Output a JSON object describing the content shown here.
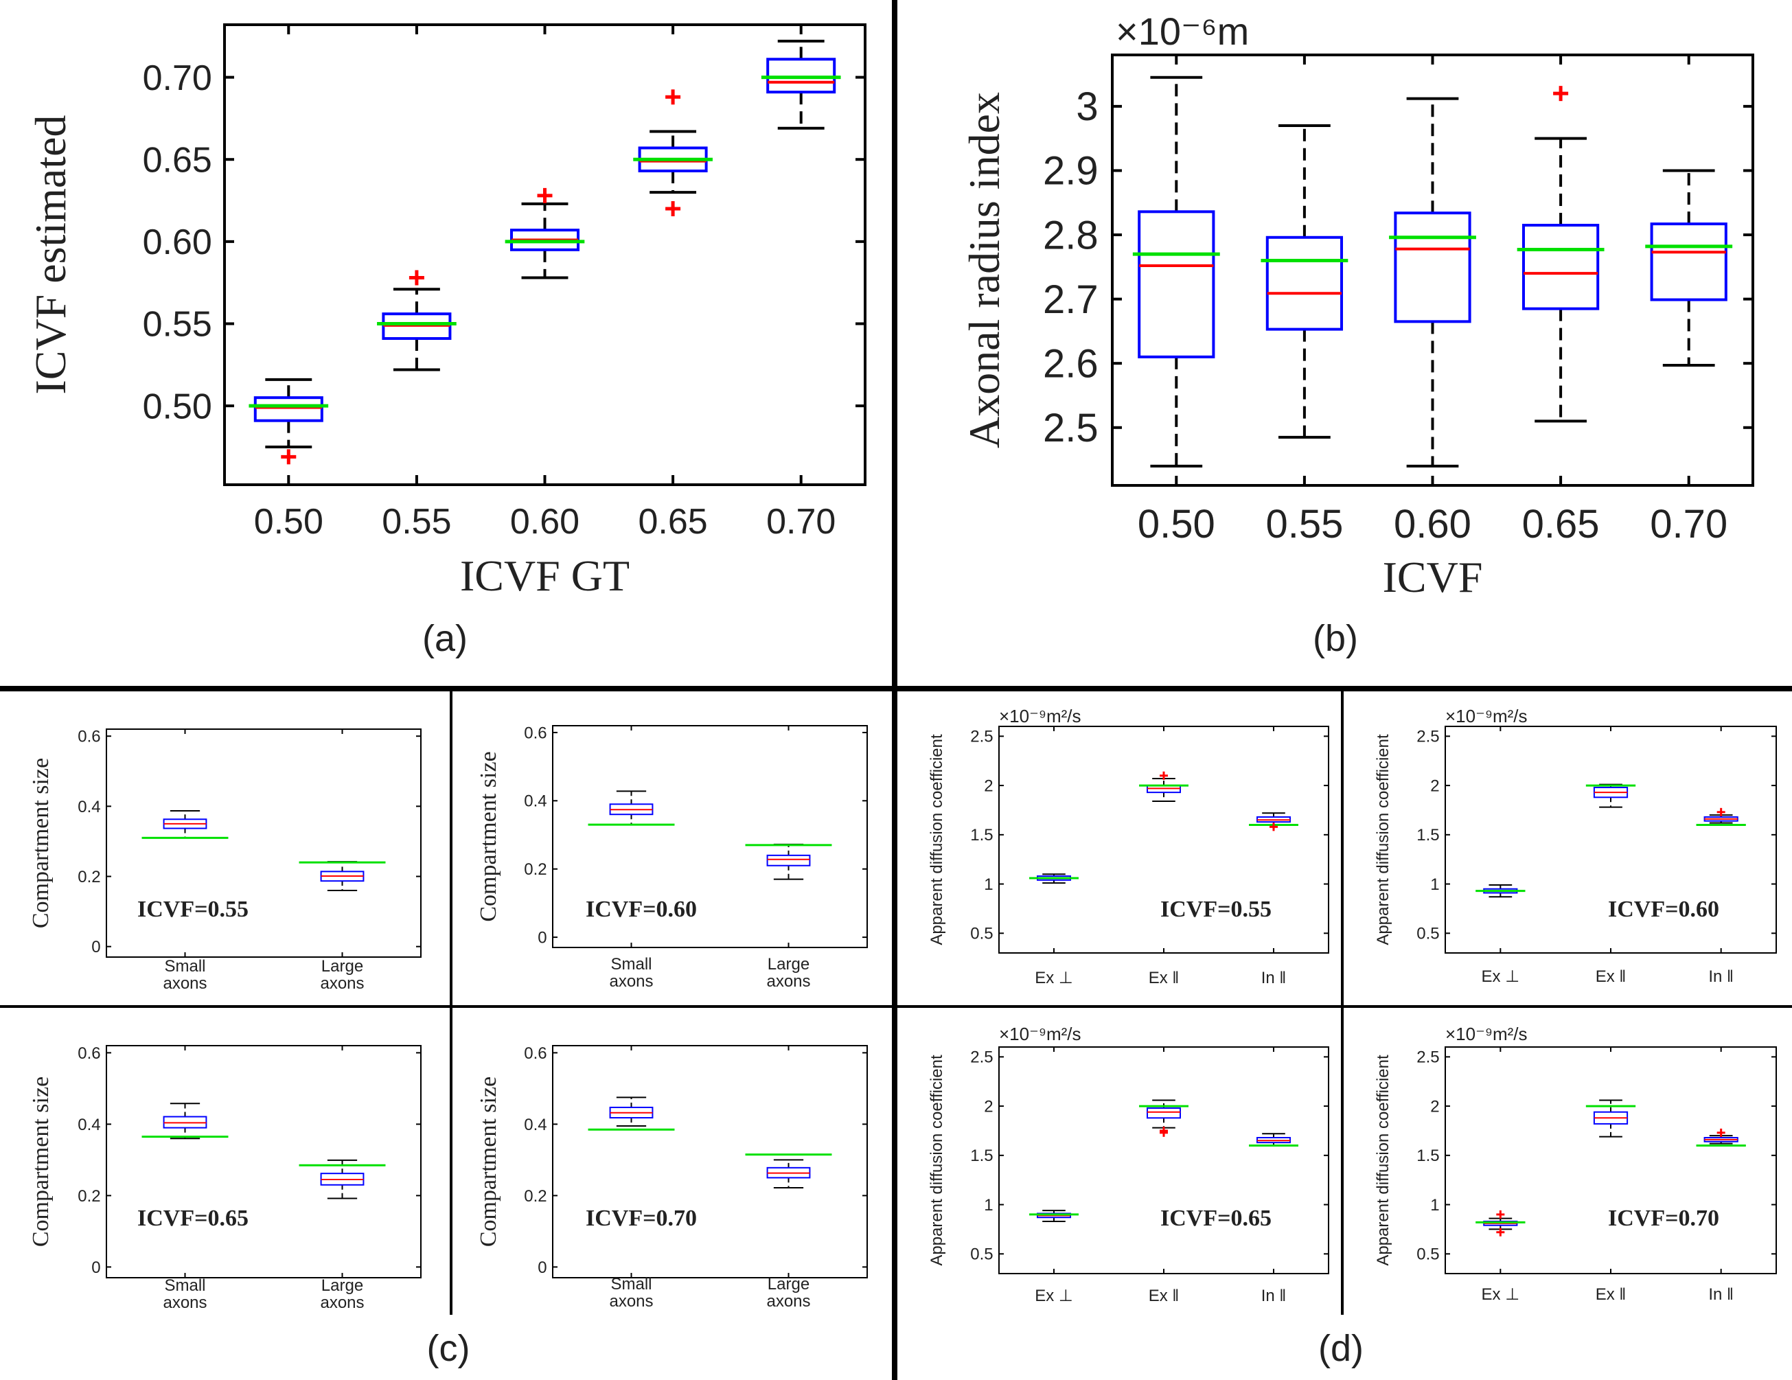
{
  "panel_labels": {
    "a": "(a)",
    "b": "(b)",
    "c": "(c)",
    "d": "(d)"
  },
  "colors": {
    "box": "#0000ff",
    "median": "#ff0000",
    "ground_truth": "#00e000",
    "outlier": "#ff0000",
    "whisker": "#000000",
    "frame": "#000000"
  },
  "chart_data": [
    {
      "id": "a",
      "type": "boxplot",
      "xlabel": "ICVF GT",
      "ylabel": "ICVF estimated",
      "multiplier": "",
      "categories": [
        "0.50",
        "0.55",
        "0.60",
        "0.65",
        "0.70"
      ],
      "ylim": [
        0.452,
        0.732
      ],
      "yticks": [
        0.5,
        0.55,
        0.6,
        0.65,
        0.7
      ],
      "ytick_labels": [
        "0.50",
        "0.55",
        "0.60",
        "0.65",
        "0.70"
      ],
      "boxes": [
        {
          "q1": 0.491,
          "median": 0.499,
          "q3": 0.505,
          "wlo": 0.475,
          "whi": 0.516,
          "gt": 0.5,
          "outliers": [
            0.469
          ]
        },
        {
          "q1": 0.541,
          "median": 0.549,
          "q3": 0.556,
          "wlo": 0.522,
          "whi": 0.571,
          "gt": 0.55,
          "outliers": [
            0.578
          ]
        },
        {
          "q1": 0.595,
          "median": 0.601,
          "q3": 0.607,
          "wlo": 0.578,
          "whi": 0.623,
          "gt": 0.6,
          "outliers": [
            0.628
          ]
        },
        {
          "q1": 0.643,
          "median": 0.649,
          "q3": 0.657,
          "wlo": 0.63,
          "whi": 0.667,
          "gt": 0.65,
          "outliers": [
            0.688,
            0.62
          ]
        },
        {
          "q1": 0.691,
          "median": 0.697,
          "q3": 0.711,
          "wlo": 0.669,
          "whi": 0.722,
          "gt": 0.7,
          "outliers": []
        }
      ]
    },
    {
      "id": "b",
      "type": "boxplot",
      "xlabel": "ICVF",
      "ylabel": "Axonal radius index",
      "multiplier": "×10⁻⁶m",
      "categories": [
        "0.50",
        "0.55",
        "0.60",
        "0.65",
        "0.70"
      ],
      "ylim": [
        2.41,
        3.08
      ],
      "yticks": [
        2.5,
        2.6,
        2.7,
        2.8,
        2.9,
        3.0
      ],
      "ytick_labels": [
        "2.5",
        "2.6",
        "2.7",
        "2.8",
        "2.9",
        "3"
      ],
      "boxes": [
        {
          "q1": 2.61,
          "median": 2.752,
          "q3": 2.836,
          "wlo": 2.44,
          "whi": 3.045,
          "gt": 2.77,
          "outliers": []
        },
        {
          "q1": 2.653,
          "median": 2.709,
          "q3": 2.796,
          "wlo": 2.485,
          "whi": 2.97,
          "gt": 2.76,
          "outliers": []
        },
        {
          "q1": 2.665,
          "median": 2.778,
          "q3": 2.834,
          "wlo": 2.44,
          "whi": 3.012,
          "gt": 2.796,
          "outliers": []
        },
        {
          "q1": 2.685,
          "median": 2.74,
          "q3": 2.815,
          "wlo": 2.51,
          "whi": 2.95,
          "gt": 2.777,
          "outliers": [
            3.02
          ]
        },
        {
          "q1": 2.699,
          "median": 2.773,
          "q3": 2.817,
          "wlo": 2.597,
          "whi": 2.9,
          "gt": 2.782,
          "outliers": []
        }
      ]
    },
    {
      "id": "c1",
      "type": "boxplot",
      "inset": "ICVF=0.55",
      "xlabel": "",
      "ylabel": "Compartment size",
      "multiplier": "",
      "categories": [
        "Small\naxons",
        "Large\naxons"
      ],
      "ylim": [
        -0.03,
        0.62
      ],
      "yticks": [
        0,
        0.2,
        0.4,
        0.6
      ],
      "ytick_labels": [
        "0",
        "0.2",
        "0.4",
        "0.6"
      ],
      "boxes": [
        {
          "q1": 0.337,
          "median": 0.35,
          "q3": 0.363,
          "wlo": 0.31,
          "whi": 0.387,
          "gt": 0.31,
          "outliers": []
        },
        {
          "q1": 0.187,
          "median": 0.201,
          "q3": 0.214,
          "wlo": 0.16,
          "whi": 0.242,
          "gt": 0.24,
          "outliers": []
        }
      ]
    },
    {
      "id": "c2",
      "type": "boxplot",
      "inset": "ICVF=0.60",
      "xlabel": "",
      "ylabel": "Compartment size",
      "multiplier": "",
      "categories": [
        "Small\naxons",
        "Large\naxons"
      ],
      "ylim": [
        -0.03,
        0.62
      ],
      "yticks": [
        0,
        0.2,
        0.4,
        0.6
      ],
      "ytick_labels": [
        "0",
        "0.2",
        "0.4",
        "0.6"
      ],
      "boxes": [
        {
          "q1": 0.36,
          "median": 0.374,
          "q3": 0.39,
          "wlo": 0.33,
          "whi": 0.428,
          "gt": 0.33,
          "outliers": []
        },
        {
          "q1": 0.21,
          "median": 0.228,
          "q3": 0.24,
          "wlo": 0.17,
          "whi": 0.272,
          "gt": 0.27,
          "outliers": []
        }
      ]
    },
    {
      "id": "c3",
      "type": "boxplot",
      "inset": "ICVF=0.65",
      "xlabel": "",
      "ylabel": "Compartment size",
      "multiplier": "",
      "categories": [
        "Small\naxons",
        "Large\naxons"
      ],
      "ylim": [
        -0.03,
        0.62
      ],
      "yticks": [
        0,
        0.2,
        0.4,
        0.6
      ],
      "ytick_labels": [
        "0",
        "0.2",
        "0.4",
        "0.6"
      ],
      "boxes": [
        {
          "q1": 0.39,
          "median": 0.404,
          "q3": 0.421,
          "wlo": 0.36,
          "whi": 0.458,
          "gt": 0.365,
          "outliers": []
        },
        {
          "q1": 0.23,
          "median": 0.245,
          "q3": 0.262,
          "wlo": 0.192,
          "whi": 0.299,
          "gt": 0.285,
          "outliers": []
        }
      ]
    },
    {
      "id": "c4",
      "type": "boxplot",
      "inset": "ICVF=0.70",
      "xlabel": "",
      "ylabel": "Compartment size",
      "multiplier": "",
      "categories": [
        "Small\naxons",
        "Large\naxons"
      ],
      "ylim": [
        -0.03,
        0.62
      ],
      "yticks": [
        0,
        0.2,
        0.4,
        0.6
      ],
      "ytick_labels": [
        "0",
        "0.2",
        "0.4",
        "0.6"
      ],
      "boxes": [
        {
          "q1": 0.418,
          "median": 0.432,
          "q3": 0.447,
          "wlo": 0.395,
          "whi": 0.475,
          "gt": 0.385,
          "outliers": []
        },
        {
          "q1": 0.25,
          "median": 0.263,
          "q3": 0.278,
          "wlo": 0.222,
          "whi": 0.3,
          "gt": 0.315,
          "outliers": []
        }
      ]
    },
    {
      "id": "d1",
      "type": "boxplot",
      "inset": "ICVF=0.55",
      "xlabel": "",
      "ylabel": "Apparent diffusion coefficient",
      "multiplier": "×10⁻⁹m²/s",
      "categories": [
        "Ex ⊥",
        "Ex ǁ",
        "In ǁ"
      ],
      "ylim": [
        0.3,
        2.6
      ],
      "yticks": [
        0.5,
        1,
        1.5,
        2,
        2.5
      ],
      "ytick_labels": [
        "0.5",
        "1",
        "1.5",
        "2",
        "2.5"
      ],
      "boxes": [
        {
          "q1": 1.04,
          "median": 1.06,
          "q3": 1.08,
          "wlo": 1.01,
          "whi": 1.1,
          "gt": 1.06,
          "outliers": []
        },
        {
          "q1": 1.93,
          "median": 1.97,
          "q3": 2.0,
          "wlo": 1.84,
          "whi": 2.07,
          "gt": 2.0,
          "outliers": [
            2.1
          ]
        },
        {
          "q1": 1.63,
          "median": 1.65,
          "q3": 1.68,
          "wlo": 1.6,
          "whi": 1.72,
          "gt": 1.6,
          "outliers": [
            1.58
          ]
        }
      ]
    },
    {
      "id": "d2",
      "type": "boxplot",
      "inset": "ICVF=0.60",
      "xlabel": "",
      "ylabel": "Apparent diffusion coefficient",
      "multiplier": "×10⁻⁹m²/s",
      "categories": [
        "Ex ⊥",
        "Ex ǁ",
        "In ǁ"
      ],
      "ylim": [
        0.3,
        2.6
      ],
      "yticks": [
        0.5,
        1,
        1.5,
        2,
        2.5
      ],
      "ytick_labels": [
        "0.5",
        "1",
        "1.5",
        "2",
        "2.5"
      ],
      "boxes": [
        {
          "q1": 0.91,
          "median": 0.93,
          "q3": 0.95,
          "wlo": 0.87,
          "whi": 0.99,
          "gt": 0.93,
          "outliers": []
        },
        {
          "q1": 1.88,
          "median": 1.93,
          "q3": 1.98,
          "wlo": 1.78,
          "whi": 2.01,
          "gt": 2.0,
          "outliers": []
        },
        {
          "q1": 1.64,
          "median": 1.66,
          "q3": 1.68,
          "wlo": 1.62,
          "whi": 1.7,
          "gt": 1.6,
          "outliers": [
            1.73
          ]
        }
      ]
    },
    {
      "id": "d3",
      "type": "boxplot",
      "inset": "ICVF=0.65",
      "xlabel": "",
      "ylabel": "Apparent diffusion coefficient",
      "multiplier": "×10⁻⁹m²/s",
      "categories": [
        "Ex ⊥",
        "Ex ǁ",
        "In ǁ"
      ],
      "ylim": [
        0.3,
        2.6
      ],
      "yticks": [
        0.5,
        1,
        1.5,
        2,
        2.5
      ],
      "ytick_labels": [
        "0.5",
        "1",
        "1.5",
        "2",
        "2.5"
      ],
      "boxes": [
        {
          "q1": 0.87,
          "median": 0.89,
          "q3": 0.91,
          "wlo": 0.83,
          "whi": 0.94,
          "gt": 0.9,
          "outliers": []
        },
        {
          "q1": 1.88,
          "median": 1.94,
          "q3": 1.98,
          "wlo": 1.78,
          "whi": 2.06,
          "gt": 2.0,
          "outliers": [
            1.73,
            1.75
          ]
        },
        {
          "q1": 1.63,
          "median": 1.65,
          "q3": 1.68,
          "wlo": 1.6,
          "whi": 1.72,
          "gt": 1.6,
          "outliers": []
        }
      ]
    },
    {
      "id": "d4",
      "type": "boxplot",
      "inset": "ICVF=0.70",
      "xlabel": "",
      "ylabel": "Apparent diffusion coefficient",
      "multiplier": "×10⁻⁹m²/s",
      "categories": [
        "Ex ⊥",
        "Ex ǁ",
        "In ǁ"
      ],
      "ylim": [
        0.3,
        2.6
      ],
      "yticks": [
        0.5,
        1,
        1.5,
        2,
        2.5
      ],
      "ytick_labels": [
        "0.5",
        "1",
        "1.5",
        "2",
        "2.5"
      ],
      "boxes": [
        {
          "q1": 0.79,
          "median": 0.81,
          "q3": 0.83,
          "wlo": 0.75,
          "whi": 0.86,
          "gt": 0.82,
          "outliers": [
            0.72,
            0.9
          ]
        },
        {
          "q1": 1.82,
          "median": 1.88,
          "q3": 1.94,
          "wlo": 1.69,
          "whi": 2.06,
          "gt": 2.0,
          "outliers": []
        },
        {
          "q1": 1.64,
          "median": 1.66,
          "q3": 1.68,
          "wlo": 1.62,
          "whi": 1.7,
          "gt": 1.6,
          "outliers": [
            1.73
          ]
        }
      ]
    }
  ]
}
